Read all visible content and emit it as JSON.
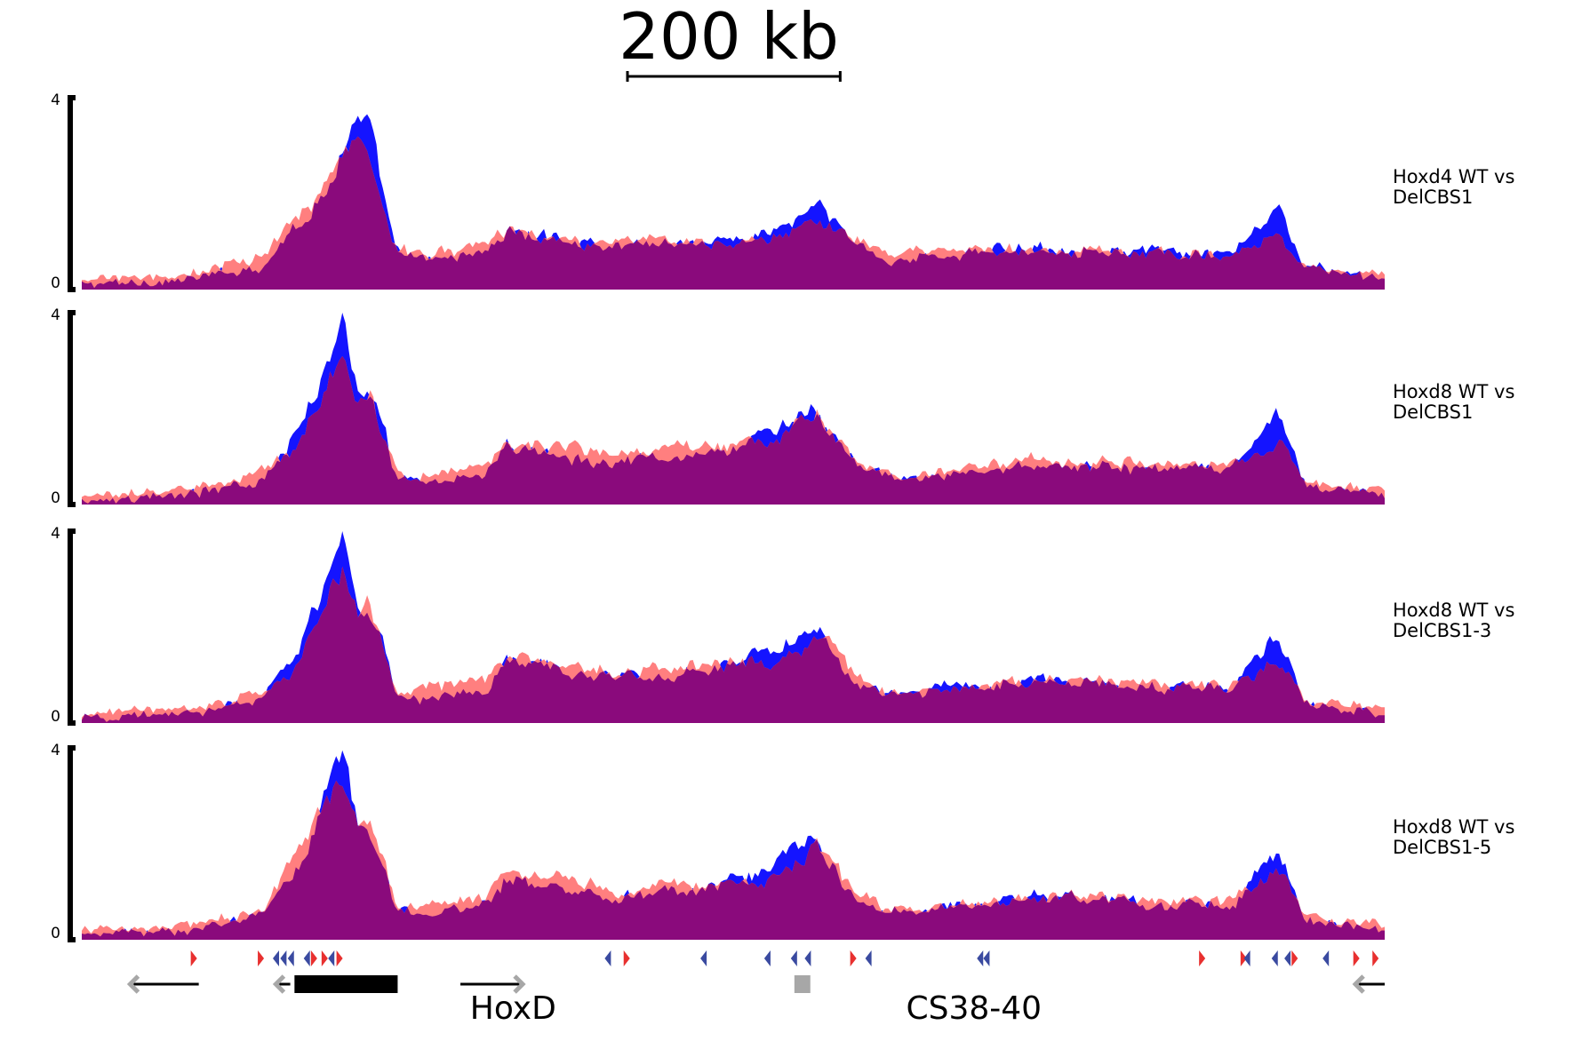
{
  "scale_bar": {
    "label": "200 kb",
    "kb": 200
  },
  "colors": {
    "wt": "#1414ff",
    "mutant": "#ff7f7f",
    "overlap": "#8a0a7c",
    "forward_ctcf": "#e8302f",
    "reverse_ctcf": "#3a4aa0",
    "gene": "#000000",
    "gene_arrow": "#a7a7a7",
    "enhancer": "#a7a7a7"
  },
  "chart_data": [
    {
      "type": "area",
      "label": "Hoxd4 WT vs DelCBS1",
      "ylim": [
        0,
        4
      ],
      "y_ticks": [
        "0",
        "4"
      ],
      "x_range_kb": [
        0,
        1225
      ],
      "x_kb": [
        0,
        100,
        170,
        200,
        230,
        245,
        260,
        270,
        285,
        295,
        320,
        380,
        400,
        480,
        495,
        540,
        600,
        650,
        690,
        700,
        725,
        760,
        900,
        1080,
        1125,
        1150,
        1225
      ],
      "series": [
        {
          "name": "WT",
          "values": [
            0.1,
            0.2,
            0.5,
            1.3,
            2.0,
            3.0,
            3.5,
            3.4,
            1.8,
            0.8,
            0.6,
            0.8,
            1.2,
            1.0,
            0.9,
            1.0,
            1.0,
            1.2,
            1.7,
            1.6,
            1.0,
            0.6,
            0.9,
            0.7,
            1.7,
            0.5,
            0.2
          ]
        },
        {
          "name": "DelCBS1",
          "values": [
            0.2,
            0.3,
            0.7,
            1.5,
            2.1,
            2.9,
            3.3,
            2.9,
            1.6,
            0.9,
            0.7,
            0.9,
            1.2,
            1.0,
            1.0,
            1.1,
            1.0,
            1.1,
            1.4,
            1.4,
            1.1,
            0.7,
            0.9,
            0.7,
            1.1,
            0.5,
            0.3
          ]
        }
      ]
    },
    {
      "type": "area",
      "label": "Hoxd8 WT vs DelCBS1",
      "ylim": [
        0,
        4
      ],
      "y_ticks": [
        "0",
        "4"
      ],
      "x_range_kb": [
        0,
        1225
      ],
      "x_kb": [
        0,
        100,
        170,
        200,
        230,
        245,
        260,
        270,
        285,
        295,
        320,
        380,
        400,
        480,
        495,
        540,
        600,
        650,
        690,
        700,
        725,
        760,
        900,
        1080,
        1125,
        1150,
        1225
      ],
      "series": [
        {
          "name": "WT",
          "values": [
            0.1,
            0.2,
            0.5,
            1.4,
            3.0,
            4.0,
            2.4,
            2.4,
            1.5,
            0.6,
            0.4,
            0.6,
            1.3,
            0.9,
            0.9,
            1.0,
            1.1,
            1.5,
            2.0,
            1.8,
            0.9,
            0.5,
            0.8,
            0.7,
            1.9,
            0.4,
            0.2
          ]
        },
        {
          "name": "DelCBS1",
          "values": [
            0.2,
            0.3,
            0.7,
            1.1,
            2.6,
            3.2,
            2.2,
            2.5,
            1.3,
            0.7,
            0.6,
            0.8,
            1.3,
            1.2,
            1.0,
            1.2,
            1.2,
            1.3,
            1.9,
            1.7,
            1.0,
            0.6,
            0.9,
            0.8,
            1.3,
            0.5,
            0.3
          ]
        }
      ]
    },
    {
      "type": "area",
      "label": "Hoxd8 WT vs DelCBS1-3",
      "ylim": [
        0,
        4
      ],
      "y_ticks": [
        "0",
        "4"
      ],
      "x_range_kb": [
        0,
        1225
      ],
      "x_kb": [
        0,
        100,
        170,
        200,
        230,
        245,
        260,
        270,
        285,
        295,
        320,
        380,
        400,
        480,
        495,
        540,
        600,
        650,
        690,
        700,
        725,
        760,
        900,
        1080,
        1125,
        1150,
        1225
      ],
      "series": [
        {
          "name": "WT",
          "values": [
            0.1,
            0.2,
            0.5,
            1.4,
            3.0,
            4.0,
            2.2,
            2.3,
            1.5,
            0.6,
            0.5,
            0.7,
            1.3,
            1.0,
            1.0,
            1.0,
            1.1,
            1.5,
            2.0,
            1.8,
            0.9,
            0.6,
            0.9,
            0.7,
            1.9,
            0.4,
            0.2
          ]
        },
        {
          "name": "DelCBS1-3",
          "values": [
            0.2,
            0.3,
            0.6,
            1.1,
            2.5,
            3.1,
            2.1,
            2.5,
            1.4,
            0.7,
            0.7,
            0.9,
            1.3,
            1.2,
            1.0,
            1.2,
            1.2,
            1.3,
            1.8,
            1.7,
            1.0,
            0.6,
            0.9,
            0.8,
            1.3,
            0.5,
            0.3
          ]
        }
      ]
    },
    {
      "type": "area",
      "label": "Hoxd8 WT vs DelCBS1-5",
      "ylim": [
        0,
        4
      ],
      "y_ticks": [
        "0",
        "4"
      ],
      "x_range_kb": [
        0,
        1225
      ],
      "x_kb": [
        0,
        100,
        170,
        200,
        230,
        245,
        260,
        270,
        285,
        295,
        320,
        380,
        400,
        480,
        495,
        540,
        600,
        650,
        690,
        700,
        725,
        760,
        900,
        1080,
        1125,
        1150,
        1225
      ],
      "series": [
        {
          "name": "WT",
          "values": [
            0.1,
            0.2,
            0.5,
            1.3,
            2.9,
            4.0,
            2.3,
            2.3,
            1.5,
            0.6,
            0.5,
            0.7,
            1.3,
            1.0,
            0.9,
            1.0,
            1.1,
            1.5,
            2.1,
            1.8,
            0.9,
            0.6,
            0.9,
            0.7,
            1.9,
            0.4,
            0.2
          ]
        },
        {
          "name": "DelCBS1-5",
          "values": [
            0.2,
            0.3,
            0.6,
            1.7,
            2.8,
            3.3,
            2.3,
            2.4,
            1.5,
            0.7,
            0.7,
            0.9,
            1.5,
            1.2,
            1.0,
            1.2,
            1.1,
            1.3,
            1.9,
            1.7,
            1.0,
            0.6,
            0.9,
            0.8,
            1.4,
            0.5,
            0.3
          ]
        }
      ]
    }
  ],
  "annotations": {
    "ctcf_sites_kb": [
      {
        "kb": 105,
        "dir": "forward"
      },
      {
        "kb": 168,
        "dir": "forward"
      },
      {
        "kb": 183,
        "dir": "reverse"
      },
      {
        "kb": 190,
        "dir": "reverse"
      },
      {
        "kb": 197,
        "dir": "reverse"
      },
      {
        "kb": 212,
        "dir": "reverse"
      },
      {
        "kb": 218,
        "dir": "forward"
      },
      {
        "kb": 228,
        "dir": "forward"
      },
      {
        "kb": 235,
        "dir": "reverse"
      },
      {
        "kb": 242,
        "dir": "forward"
      },
      {
        "kb": 495,
        "dir": "reverse"
      },
      {
        "kb": 512,
        "dir": "forward"
      },
      {
        "kb": 585,
        "dir": "reverse"
      },
      {
        "kb": 645,
        "dir": "reverse"
      },
      {
        "kb": 670,
        "dir": "reverse"
      },
      {
        "kb": 683,
        "dir": "reverse"
      },
      {
        "kb": 725,
        "dir": "forward"
      },
      {
        "kb": 740,
        "dir": "reverse"
      },
      {
        "kb": 845,
        "dir": "reverse"
      },
      {
        "kb": 851,
        "dir": "reverse"
      },
      {
        "kb": 1053,
        "dir": "forward"
      },
      {
        "kb": 1092,
        "dir": "forward"
      },
      {
        "kb": 1096,
        "dir": "reverse"
      },
      {
        "kb": 1122,
        "dir": "reverse"
      },
      {
        "kb": 1134,
        "dir": "reverse"
      },
      {
        "kb": 1140,
        "dir": "forward"
      },
      {
        "kb": 1170,
        "dir": "reverse"
      },
      {
        "kb": 1198,
        "dir": "forward"
      },
      {
        "kb": 1216,
        "dir": "forward"
      }
    ],
    "genes": [
      {
        "start_kb": 48,
        "end_kb": 110,
        "strand": "-"
      },
      {
        "start_kb": 185,
        "end_kb": 196,
        "strand": "-"
      },
      {
        "start_kb": 356,
        "end_kb": 412,
        "strand": "+"
      },
      {
        "start_kb": 1200,
        "end_kb": 1225,
        "strand": "-"
      }
    ],
    "gene_cluster": {
      "start_kb": 200,
      "end_kb": 297
    },
    "enhancer": {
      "start_kb": 670,
      "end_kb": 685
    },
    "labels": [
      {
        "text": "HoxD",
        "kb": 365
      },
      {
        "text": "CS38-40",
        "kb": 775
      }
    ]
  }
}
